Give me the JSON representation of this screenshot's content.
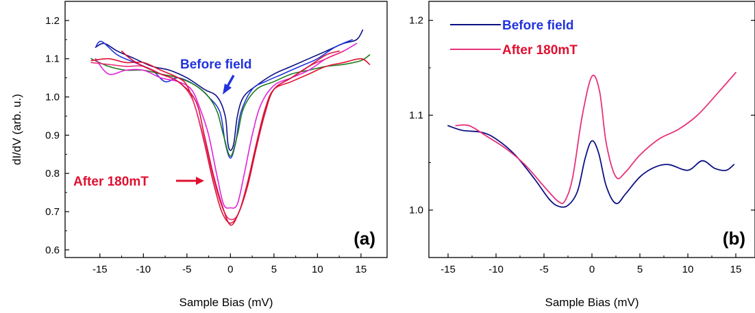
{
  "colors": {
    "navy": "#0b0f83",
    "blue": "#2233dd",
    "green": "#1b7a1b",
    "magenta": "#e020d8",
    "red": "#e01030",
    "pink": "#e8307a",
    "crimson": "#d4103a"
  },
  "chart_data": [
    {
      "type": "line",
      "panel_label": "(a)",
      "xlabel": "Sample Bias (mV)",
      "ylabel": "dI/dV (arb. u.)",
      "xlim": [
        -19,
        18
      ],
      "ylim": [
        0.58,
        1.25
      ],
      "xticks": [
        -15,
        -10,
        -5,
        0,
        5,
        10,
        15
      ],
      "yticks": [
        0.6,
        0.7,
        0.8,
        0.9,
        1.0,
        1.1,
        1.2
      ],
      "xtick_labels": [
        "-15",
        "-10",
        "-5",
        "0",
        "5",
        "10",
        "15"
      ],
      "ytick_labels": [
        "0.6",
        "0.7",
        "0.8",
        "0.9",
        "1.0",
        "1.1",
        "1.2"
      ],
      "grid": false,
      "annotations": [
        {
          "text": "Before field",
          "color": "blue"
        },
        {
          "text": "After 180mT",
          "color": "red"
        }
      ],
      "series": [
        {
          "color": "navy",
          "points": [
            [
              -15.5,
              1.13
            ],
            [
              -14.5,
              1.14
            ],
            [
              -13,
              1.12
            ],
            [
              -11,
              1.1
            ],
            [
              -9,
              1.08
            ],
            [
              -7,
              1.07
            ],
            [
              -5,
              1.05
            ],
            [
              -3,
              1.02
            ],
            [
              -1.5,
              1.0
            ],
            [
              -0.6,
              0.95
            ],
            [
              -0.3,
              0.88
            ],
            [
              0,
              0.86
            ],
            [
              0.4,
              0.88
            ],
            [
              0.8,
              0.95
            ],
            [
              1.5,
              1.0
            ],
            [
              3,
              1.03
            ],
            [
              5,
              1.06
            ],
            [
              7,
              1.08
            ],
            [
              9,
              1.1
            ],
            [
              11,
              1.12
            ],
            [
              13,
              1.14
            ],
            [
              14.5,
              1.15
            ],
            [
              15.2,
              1.175
            ]
          ]
        },
        {
          "color": "blue",
          "points": [
            [
              -15.5,
              1.13
            ],
            [
              -14.8,
              1.145
            ],
            [
              -13,
              1.11
            ],
            [
              -11,
              1.09
            ],
            [
              -9,
              1.07
            ],
            [
              -7.5,
              1.04
            ],
            [
              -6,
              1.05
            ],
            [
              -4,
              1.03
            ],
            [
              -2.5,
              1.0
            ],
            [
              -1.2,
              0.96
            ],
            [
              -0.6,
              0.88
            ],
            [
              0,
              0.84
            ],
            [
              0.6,
              0.88
            ],
            [
              1.2,
              0.96
            ],
            [
              2.5,
              1.02
            ],
            [
              4,
              1.04
            ],
            [
              6,
              1.06
            ],
            [
              8,
              1.08
            ],
            [
              10,
              1.1
            ],
            [
              12,
              1.13
            ],
            [
              14,
              1.15
            ]
          ]
        },
        {
          "color": "green",
          "points": [
            [
              -16,
              1.1
            ],
            [
              -14,
              1.08
            ],
            [
              -12,
              1.07
            ],
            [
              -10,
              1.07
            ],
            [
              -8,
              1.06
            ],
            [
              -6,
              1.05
            ],
            [
              -4,
              1.03
            ],
            [
              -2.5,
              1.0
            ],
            [
              -1.5,
              0.96
            ],
            [
              -0.8,
              0.9
            ],
            [
              0,
              0.845
            ],
            [
              0.8,
              0.9
            ],
            [
              1.5,
              0.97
            ],
            [
              3,
              1.02
            ],
            [
              5,
              1.04
            ],
            [
              7,
              1.06
            ],
            [
              9,
              1.07
            ],
            [
              11,
              1.08
            ],
            [
              13,
              1.085
            ],
            [
              15,
              1.095
            ],
            [
              16,
              1.11
            ]
          ]
        },
        {
          "color": "magenta",
          "points": [
            [
              -15.5,
              1.1
            ],
            [
              -14,
              1.06
            ],
            [
              -12,
              1.07
            ],
            [
              -10,
              1.07
            ],
            [
              -8,
              1.05
            ],
            [
              -6,
              1.04
            ],
            [
              -4.5,
              1.02
            ],
            [
              -3.5,
              0.97
            ],
            [
              -2.5,
              0.9
            ],
            [
              -1.6,
              0.8
            ],
            [
              -0.8,
              0.72
            ],
            [
              0,
              0.71
            ],
            [
              0.8,
              0.72
            ],
            [
              1.6,
              0.8
            ],
            [
              2.5,
              0.9
            ],
            [
              3.5,
              0.98
            ],
            [
              5,
              1.03
            ],
            [
              7,
              1.05
            ],
            [
              9,
              1.07
            ],
            [
              11,
              1.1
            ],
            [
              13,
              1.12
            ],
            [
              14.5,
              1.14
            ]
          ]
        },
        {
          "color": "red",
          "points": [
            [
              -16,
              1.095
            ],
            [
              -14,
              1.1
            ],
            [
              -12,
              1.09
            ],
            [
              -10,
              1.09
            ],
            [
              -8,
              1.07
            ],
            [
              -6,
              1.05
            ],
            [
              -5,
              1.03
            ],
            [
              -4,
              0.97
            ],
            [
              -3,
              0.88
            ],
            [
              -2,
              0.78
            ],
            [
              -1,
              0.7
            ],
            [
              0,
              0.67
            ],
            [
              1,
              0.7
            ],
            [
              2,
              0.78
            ],
            [
              3,
              0.88
            ],
            [
              4,
              0.97
            ],
            [
              5,
              1.02
            ],
            [
              7,
              1.04
            ],
            [
              9,
              1.06
            ],
            [
              11,
              1.08
            ],
            [
              13,
              1.09
            ],
            [
              15,
              1.1
            ],
            [
              16,
              1.085
            ]
          ]
        },
        {
          "color": "pink",
          "points": [
            [
              -16,
              1.09
            ],
            [
              -14,
              1.085
            ],
            [
              -12,
              1.08
            ],
            [
              -10,
              1.08
            ],
            [
              -8,
              1.06
            ],
            [
              -6,
              1.04
            ],
            [
              -4.5,
              1.0
            ],
            [
              -3.5,
              0.93
            ],
            [
              -2.5,
              0.84
            ],
            [
              -1.5,
              0.75
            ],
            [
              -0.5,
              0.69
            ],
            [
              0.3,
              0.68
            ],
            [
              1,
              0.7
            ],
            [
              2,
              0.77
            ],
            [
              3,
              0.87
            ],
            [
              4,
              0.96
            ],
            [
              5,
              1.02
            ],
            [
              7,
              1.05
            ],
            [
              9,
              1.08
            ],
            [
              11,
              1.1
            ],
            [
              13,
              1.12
            ]
          ]
        },
        {
          "color": "crimson",
          "points": [
            [
              -12.5,
              1.12
            ],
            [
              -11.5,
              1.1
            ],
            [
              -10,
              1.08
            ],
            [
              -8,
              1.06
            ],
            [
              -6,
              1.04
            ],
            [
              -4,
              0.99
            ],
            [
              -3,
              0.9
            ],
            [
              -2,
              0.8
            ],
            [
              -1,
              0.72
            ],
            [
              0,
              0.665
            ],
            [
              1,
              0.7
            ],
            [
              2,
              0.77
            ],
            [
              3,
              0.87
            ],
            [
              4,
              0.96
            ],
            [
              5,
              1.02
            ],
            [
              7,
              1.05
            ],
            [
              9,
              1.08
            ],
            [
              11,
              1.11
            ],
            [
              12.5,
              1.12
            ]
          ]
        }
      ]
    },
    {
      "type": "line",
      "panel_label": "(b)",
      "xlabel": "Sample Bias (mV)",
      "ylabel": "",
      "xlim": [
        -17,
        17
      ],
      "ylim": [
        0.95,
        1.22
      ],
      "xticks": [
        -15,
        -10,
        -5,
        0,
        5,
        10,
        15
      ],
      "yticks": [
        1.0,
        1.1,
        1.2
      ],
      "xtick_labels": [
        "-15",
        "-10",
        "-5",
        "0",
        "5",
        "10",
        "15"
      ],
      "ytick_labels": [
        "1.0",
        "1.1",
        "1.2"
      ],
      "grid": false,
      "legend": {
        "position": "top-left"
      },
      "series": [
        {
          "name": "Before field",
          "color": "navy",
          "points": [
            [
              -15,
              1.089
            ],
            [
              -13.5,
              1.084
            ],
            [
              -11.5,
              1.082
            ],
            [
              -10,
              1.075
            ],
            [
              -8,
              1.058
            ],
            [
              -6,
              1.033
            ],
            [
              -4.5,
              1.012
            ],
            [
              -3.5,
              1.004
            ],
            [
              -2.5,
              1.005
            ],
            [
              -1.5,
              1.02
            ],
            [
              -0.7,
              1.055
            ],
            [
              0,
              1.073
            ],
            [
              0.7,
              1.06
            ],
            [
              1.5,
              1.025
            ],
            [
              2.5,
              1.007
            ],
            [
              3.5,
              1.017
            ],
            [
              5,
              1.035
            ],
            [
              6.5,
              1.045
            ],
            [
              8,
              1.048
            ],
            [
              10,
              1.042
            ],
            [
              11.5,
              1.052
            ],
            [
              12.8,
              1.044
            ],
            [
              14,
              1.042
            ],
            [
              14.8,
              1.048
            ]
          ]
        },
        {
          "name": "After 180mT",
          "color": "pink",
          "points": [
            [
              -14.2,
              1.089
            ],
            [
              -12.8,
              1.089
            ],
            [
              -11,
              1.078
            ],
            [
              -9,
              1.065
            ],
            [
              -7,
              1.048
            ],
            [
              -5,
              1.025
            ],
            [
              -3.5,
              1.009
            ],
            [
              -2.8,
              1.01
            ],
            [
              -2,
              1.035
            ],
            [
              -1,
              1.1
            ],
            [
              0,
              1.141
            ],
            [
              0.8,
              1.125
            ],
            [
              1.5,
              1.07
            ],
            [
              2.5,
              1.035
            ],
            [
              3.5,
              1.04
            ],
            [
              5,
              1.058
            ],
            [
              7,
              1.075
            ],
            [
              9,
              1.085
            ],
            [
              11,
              1.1
            ],
            [
              13,
              1.122
            ],
            [
              15,
              1.145
            ]
          ]
        }
      ]
    }
  ]
}
